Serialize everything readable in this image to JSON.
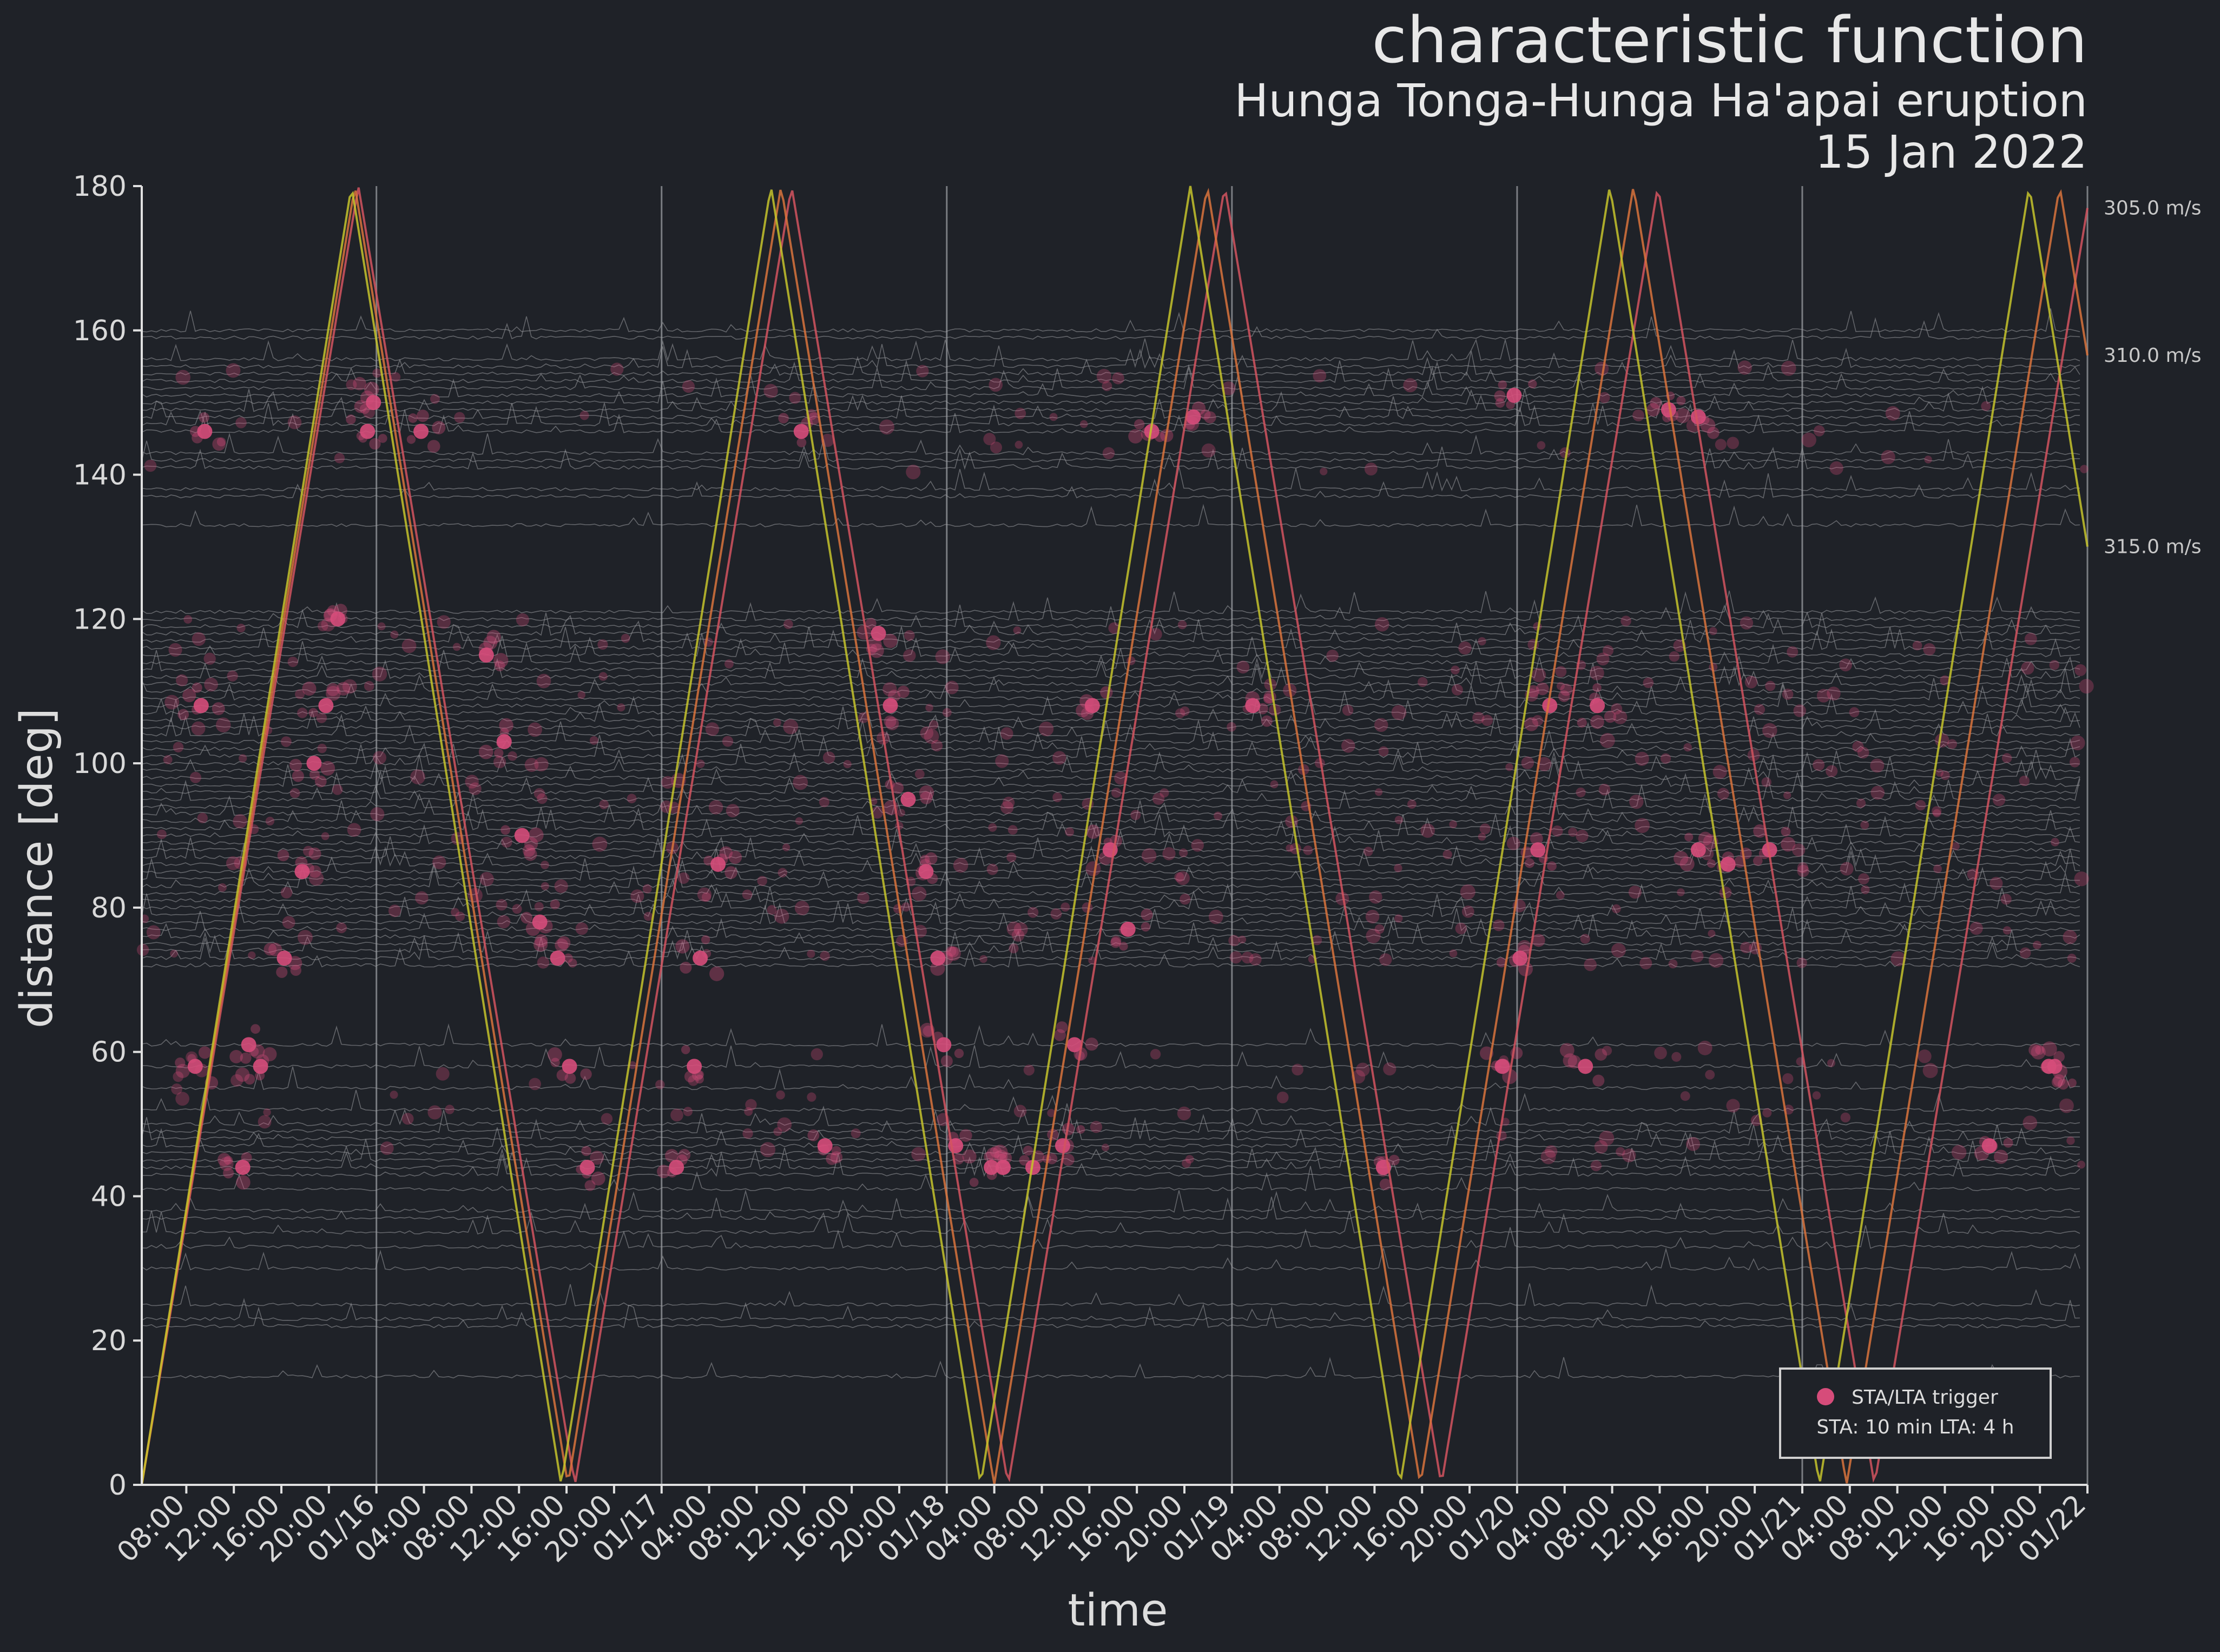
{
  "chart_data": {
    "type": "line",
    "title": "characteristic function",
    "subtitle": "Hunga Tonga-Hunga Ha'apai eruption",
    "subtitle2": "15 Jan 2022",
    "xlabel": "time",
    "ylabel": "distance [deg]",
    "ylim": [
      0,
      180
    ],
    "yticks": [
      0,
      20,
      40,
      60,
      80,
      100,
      120,
      140,
      160,
      180
    ],
    "xlim": [
      "2022-01-15 04:15",
      "2022-01-22 00:00"
    ],
    "xticks": [
      "08:00",
      "12:00",
      "16:00",
      "20:00",
      "01/16",
      "04:00",
      "08:00",
      "12:00",
      "16:00",
      "20:00",
      "01/17",
      "04:00",
      "08:00",
      "12:00",
      "16:00",
      "20:00",
      "01/18",
      "04:00",
      "08:00",
      "12:00",
      "16:00",
      "20:00",
      "01/19",
      "04:00",
      "08:00",
      "12:00",
      "16:00",
      "20:00",
      "01/20",
      "04:00",
      "08:00",
      "12:00",
      "16:00",
      "20:00",
      "01/21",
      "04:00",
      "08:00",
      "12:00",
      "16:00",
      "20:00",
      "01/22"
    ],
    "x_tick_hours_from_start": [
      3.75,
      7.75,
      11.75,
      15.75,
      19.75,
      23.75,
      27.75,
      31.75,
      35.75,
      39.75,
      43.75,
      47.75,
      51.75,
      55.75,
      59.75,
      63.75,
      67.75,
      71.75,
      75.75,
      79.75,
      83.75,
      87.75,
      91.75,
      95.75,
      99.75,
      103.75,
      107.75,
      111.75,
      115.75,
      119.75,
      123.75,
      127.75,
      131.75,
      135.75,
      139.75,
      143.75,
      147.75,
      151.75,
      155.75,
      159.75,
      163.75
    ],
    "day_gridlines": [
      "01/16",
      "01/17",
      "01/18",
      "01/19",
      "01/20",
      "01/21"
    ],
    "grid": "vertical lines at day boundaries",
    "series": [
      {
        "name": "305.0 m/s",
        "speed_ms": 305.0,
        "color": "#d4545f"
      },
      {
        "name": "310.0 m/s",
        "speed_ms": 310.0,
        "color": "#d9733c"
      },
      {
        "name": "315.0 m/s",
        "speed_ms": 315.0,
        "color": "#c6c32c"
      }
    ],
    "trace_distances_deg": [
      15,
      22,
      23,
      25,
      30,
      33,
      35,
      37,
      38,
      41,
      43,
      44,
      45,
      46,
      47,
      48,
      49,
      50,
      52,
      55,
      58,
      61,
      72,
      73,
      74,
      75,
      76,
      77,
      78,
      79,
      80,
      81,
      82,
      83,
      84,
      85,
      86,
      87,
      88,
      89,
      90,
      91,
      92,
      93,
      94,
      95,
      96,
      97,
      98,
      99,
      100,
      101,
      102,
      103,
      104,
      105,
      106,
      107,
      108,
      109,
      110,
      111,
      112,
      113,
      114,
      115,
      116,
      117,
      118,
      119,
      120,
      121,
      133,
      137,
      138,
      141,
      142,
      143,
      146,
      147,
      148,
      149,
      150,
      151,
      152,
      153,
      154,
      155,
      156,
      159,
      160
    ],
    "trigger_clusters": [
      {
        "hour": 5.0,
        "deg": 108
      },
      {
        "hour": 4.5,
        "deg": 58
      },
      {
        "hour": 5.3,
        "deg": 146
      },
      {
        "hour": 8.5,
        "deg": 44
      },
      {
        "hour": 9.0,
        "deg": 61
      },
      {
        "hour": 10.0,
        "deg": 58
      },
      {
        "hour": 12.0,
        "deg": 73
      },
      {
        "hour": 13.5,
        "deg": 85
      },
      {
        "hour": 14.5,
        "deg": 100
      },
      {
        "hour": 15.5,
        "deg": 108
      },
      {
        "hour": 16.5,
        "deg": 120
      },
      {
        "hour": 19.0,
        "deg": 146
      },
      {
        "hour": 19.5,
        "deg": 150
      },
      {
        "hour": 23.5,
        "deg": 146
      },
      {
        "hour": 29.0,
        "deg": 115
      },
      {
        "hour": 30.5,
        "deg": 103
      },
      {
        "hour": 32.0,
        "deg": 90
      },
      {
        "hour": 33.5,
        "deg": 78
      },
      {
        "hour": 35.0,
        "deg": 73
      },
      {
        "hour": 36.0,
        "deg": 58
      },
      {
        "hour": 37.5,
        "deg": 44
      },
      {
        "hour": 45.0,
        "deg": 44
      },
      {
        "hour": 46.5,
        "deg": 58
      },
      {
        "hour": 47.0,
        "deg": 73
      },
      {
        "hour": 48.5,
        "deg": 86
      },
      {
        "hour": 55.5,
        "deg": 146
      },
      {
        "hour": 57.5,
        "deg": 47
      },
      {
        "hour": 62.0,
        "deg": 118
      },
      {
        "hour": 63.0,
        "deg": 108
      },
      {
        "hour": 64.5,
        "deg": 95
      },
      {
        "hour": 66.0,
        "deg": 85
      },
      {
        "hour": 67.0,
        "deg": 73
      },
      {
        "hour": 67.5,
        "deg": 61
      },
      {
        "hour": 68.5,
        "deg": 47
      },
      {
        "hour": 71.5,
        "deg": 44
      },
      {
        "hour": 72.5,
        "deg": 44
      },
      {
        "hour": 75.0,
        "deg": 44
      },
      {
        "hour": 77.5,
        "deg": 47
      },
      {
        "hour": 78.5,
        "deg": 61
      },
      {
        "hour": 80.0,
        "deg": 108
      },
      {
        "hour": 81.5,
        "deg": 88
      },
      {
        "hour": 83.0,
        "deg": 77
      },
      {
        "hour": 85.0,
        "deg": 146
      },
      {
        "hour": 88.5,
        "deg": 148
      },
      {
        "hour": 93.5,
        "deg": 108
      },
      {
        "hour": 104.5,
        "deg": 44
      },
      {
        "hour": 114.5,
        "deg": 58
      },
      {
        "hour": 116.0,
        "deg": 73
      },
      {
        "hour": 117.5,
        "deg": 88
      },
      {
        "hour": 118.5,
        "deg": 108
      },
      {
        "hour": 115.5,
        "deg": 151
      },
      {
        "hour": 121.5,
        "deg": 58
      },
      {
        "hour": 122.5,
        "deg": 108
      },
      {
        "hour": 128.5,
        "deg": 149
      },
      {
        "hour": 131.0,
        "deg": 148
      },
      {
        "hour": 131.0,
        "deg": 88
      },
      {
        "hour": 133.5,
        "deg": 86
      },
      {
        "hour": 137.0,
        "deg": 88
      },
      {
        "hour": 155.5,
        "deg": 47
      },
      {
        "hour": 160.5,
        "deg": 58
      },
      {
        "hour": 161.0,
        "deg": 58
      }
    ],
    "legend": {
      "placement": "bottom-right",
      "entry": "STA/LTA trigger",
      "note": "STA: 10 min  LTA: 4 h",
      "marker_color": "#d64c7a"
    }
  }
}
